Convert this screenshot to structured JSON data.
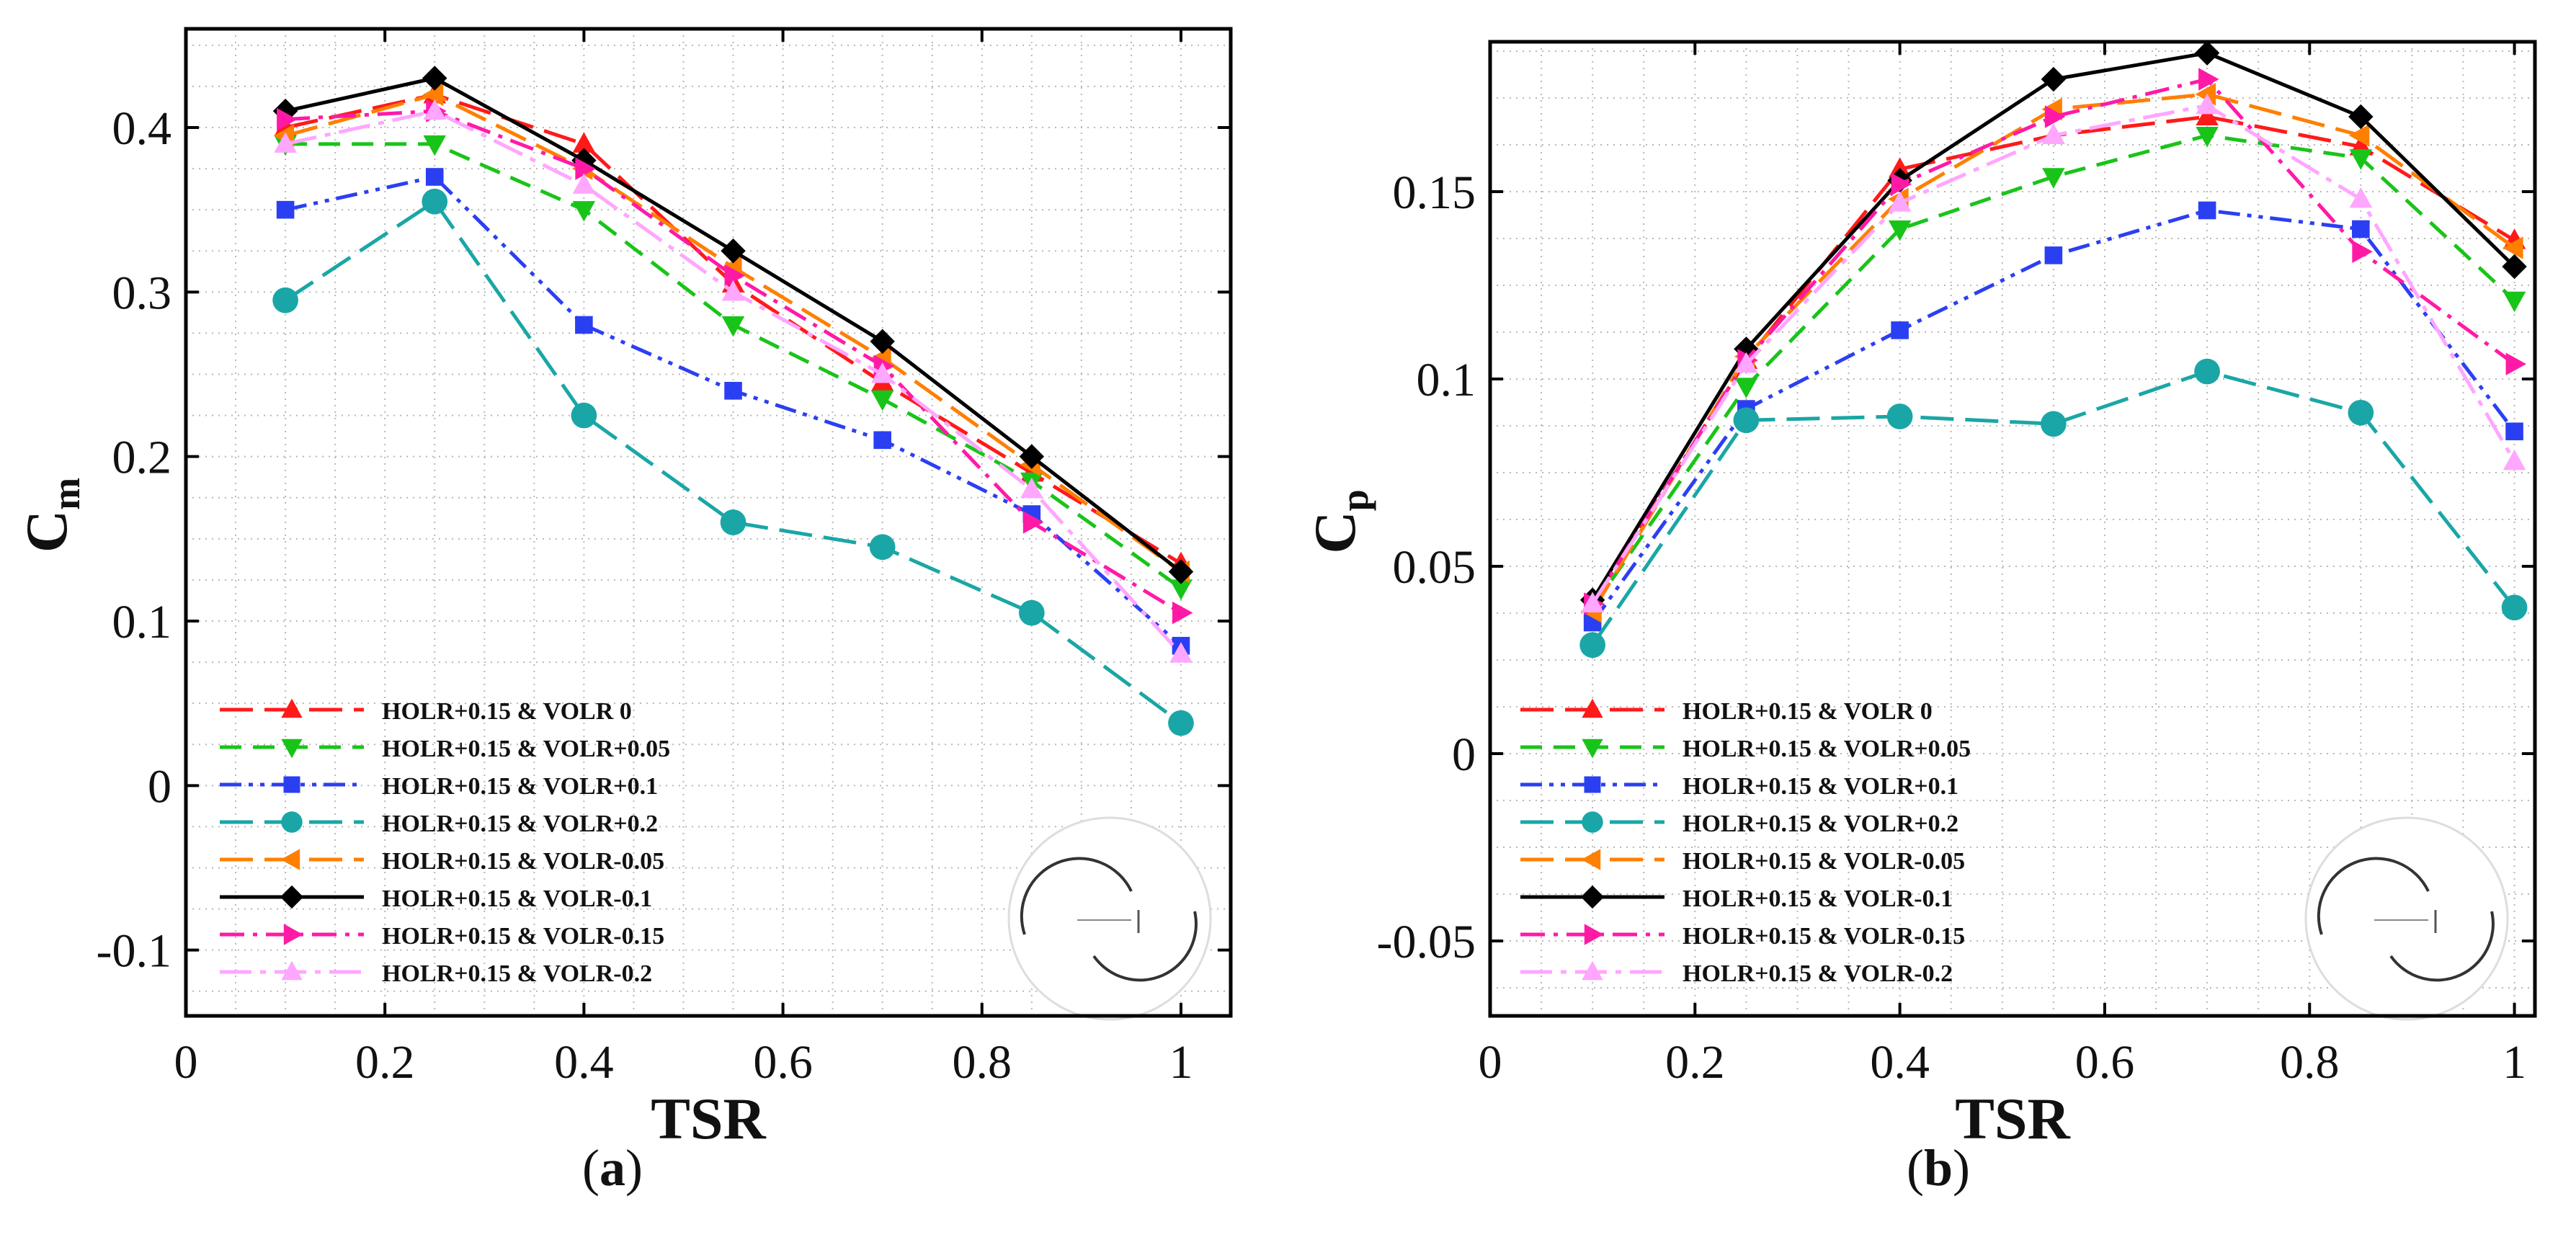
{
  "chart_data": [
    {
      "type": "line",
      "panel_label": "a",
      "xlabel": "TSR",
      "ylabel_main": "C",
      "ylabel_sub": "m",
      "xlim": [
        0,
        1.05
      ],
      "ylim": [
        -0.14,
        0.46
      ],
      "xticks": [
        0,
        0.2,
        0.4,
        0.6,
        0.8,
        1
      ],
      "xtick_labels": [
        "0",
        "0.2",
        "0.4",
        "0.6",
        "0.8",
        "1"
      ],
      "yticks": [
        -0.1,
        0,
        0.1,
        0.2,
        0.3,
        0.4
      ],
      "ytick_labels": [
        "-0.1",
        "0",
        "0.1",
        "0.2",
        "0.3",
        "0.4"
      ],
      "grid": true,
      "legend_position": "bottom-left",
      "x": [
        0.1,
        0.25,
        0.4,
        0.55,
        0.7,
        0.85,
        1.0
      ],
      "series": [
        {
          "name": "HOLR+0.15 & VOLR 0",
          "values": [
            0.4,
            0.42,
            0.39,
            0.305,
            0.245,
            0.19,
            0.135
          ]
        },
        {
          "name": "HOLR+0.15 & VOLR+0.05",
          "values": [
            0.39,
            0.39,
            0.35,
            0.28,
            0.235,
            0.185,
            0.12
          ]
        },
        {
          "name": "HOLR+0.15 & VOLR+0.1",
          "values": [
            0.35,
            0.37,
            0.28,
            0.24,
            0.21,
            0.165,
            0.085
          ]
        },
        {
          "name": "HOLR+0.15 & VOLR+0.2",
          "values": [
            0.295,
            0.355,
            0.225,
            0.16,
            0.145,
            0.105,
            0.038
          ]
        },
        {
          "name": "HOLR+0.15 & VOLR-0.05",
          "values": [
            0.395,
            0.42,
            0.375,
            0.315,
            0.26,
            0.195,
            0.13
          ]
        },
        {
          "name": "HOLR+0.15 & VOLR-0.1",
          "values": [
            0.41,
            0.43,
            0.38,
            0.325,
            0.27,
            0.2,
            0.13
          ]
        },
        {
          "name": "HOLR+0.15 & VOLR-0.15",
          "values": [
            0.405,
            0.41,
            0.375,
            0.31,
            0.255,
            0.16,
            0.105
          ]
        },
        {
          "name": "HOLR+0.15 & VOLR-0.2",
          "values": [
            0.39,
            0.41,
            0.365,
            0.3,
            0.25,
            0.18,
            0.08
          ]
        }
      ]
    },
    {
      "type": "line",
      "panel_label": "b",
      "xlabel": "TSR",
      "ylabel_main": "C",
      "ylabel_sub": "p",
      "xlim": [
        0,
        1.02
      ],
      "ylim": [
        -0.07,
        0.19
      ],
      "xticks": [
        0,
        0.2,
        0.4,
        0.6,
        0.8,
        1
      ],
      "xtick_labels": [
        "0",
        "0.2",
        "0.4",
        "0.6",
        "0.8",
        "1"
      ],
      "yticks": [
        -0.05,
        0,
        0.05,
        0.1,
        0.15
      ],
      "ytick_labels": [
        "-0.05",
        "0",
        "0.05",
        "0.1",
        "0.15"
      ],
      "grid": true,
      "legend_position": "bottom-left",
      "x": [
        0.1,
        0.25,
        0.4,
        0.55,
        0.7,
        0.85,
        1.0
      ],
      "series": [
        {
          "name": "HOLR+0.15 & VOLR 0",
          "values": [
            0.04,
            0.105,
            0.156,
            0.165,
            0.17,
            0.162,
            0.137
          ]
        },
        {
          "name": "HOLR+0.15 & VOLR+0.05",
          "values": [
            0.039,
            0.098,
            0.14,
            0.154,
            0.165,
            0.159,
            0.121
          ]
        },
        {
          "name": "HOLR+0.15 & VOLR+0.1",
          "values": [
            0.035,
            0.092,
            0.113,
            0.133,
            0.145,
            0.14,
            0.086
          ]
        },
        {
          "name": "HOLR+0.15 & VOLR+0.2",
          "values": [
            0.029,
            0.089,
            0.09,
            0.088,
            0.102,
            0.091,
            0.039
          ]
        },
        {
          "name": "HOLR+0.15 & VOLR-0.05",
          "values": [
            0.038,
            0.106,
            0.148,
            0.172,
            0.176,
            0.165,
            0.135
          ]
        },
        {
          "name": "HOLR+0.15 & VOLR-0.1",
          "values": [
            0.041,
            0.108,
            0.153,
            0.18,
            0.187,
            0.17,
            0.13
          ]
        },
        {
          "name": "HOLR+0.15 & VOLR-0.15",
          "values": [
            0.04,
            0.105,
            0.152,
            0.17,
            0.18,
            0.134,
            0.104
          ]
        },
        {
          "name": "HOLR+0.15 & VOLR-0.2",
          "values": [
            0.04,
            0.104,
            0.147,
            0.165,
            0.173,
            0.148,
            0.078
          ]
        }
      ]
    }
  ],
  "series_styles": [
    {
      "color": "#ff1a1a",
      "marker": "triangle-up",
      "dash": "long-dash"
    },
    {
      "color": "#19c419",
      "marker": "triangle-down",
      "dash": "dash"
    },
    {
      "color": "#2b3ff2",
      "marker": "square",
      "dash": "dash-dot-dot"
    },
    {
      "color": "#1aa6a6",
      "marker": "circle",
      "dash": "long-dash"
    },
    {
      "color": "#ff7f00",
      "marker": "triangle-left",
      "dash": "long-dash"
    },
    {
      "color": "#000000",
      "marker": "diamond",
      "dash": "solid"
    },
    {
      "color": "#ff1aa6",
      "marker": "triangle-right",
      "dash": "dash-dot"
    },
    {
      "color": "#ffa6ff",
      "marker": "triangle-up",
      "dash": "long-dash-dot"
    }
  ],
  "captions": {
    "a": "a",
    "b": "b"
  }
}
